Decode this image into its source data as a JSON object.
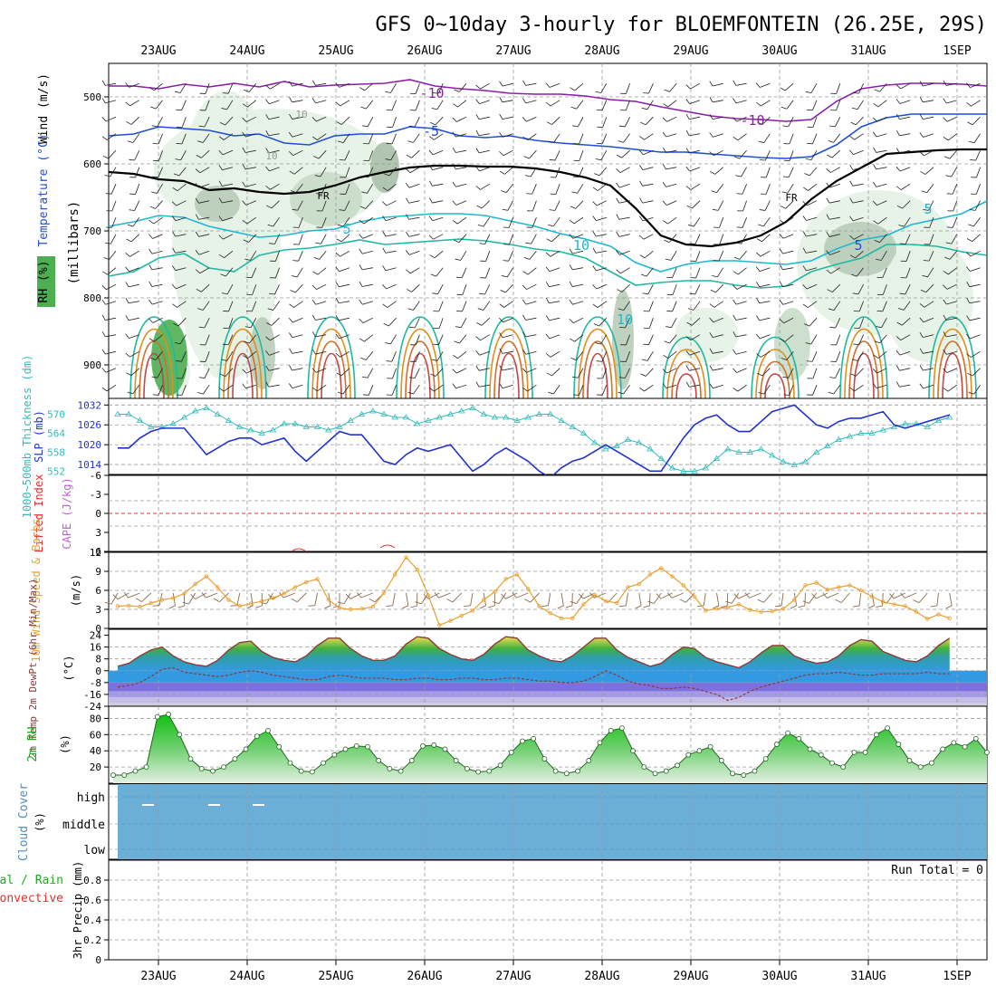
{
  "title": "GFS 0~10day 3-hourly for BLOEMFONTEIN (26.25E, 29S)",
  "dates": [
    "23AUG",
    "24AUG",
    "25AUG",
    "26AUG",
    "27AUG",
    "28AUG",
    "29AUG",
    "30AUG",
    "31AUG",
    "1SEP"
  ],
  "colors": {
    "rh_green": "#4caf50",
    "temp_purple": "#8b1fa8",
    "temp_blue": "#1f4fd8",
    "temp_cyan": "#1fb7d0",
    "temp_teal": "#1fb8a0",
    "temp_orange": "#e0901a",
    "slp": "#2233cc",
    "thickness": "#33bbbb",
    "wind10": "#e8a030",
    "rh2m": "#22aa22",
    "cloud": "#6baed6",
    "grid": "#999999"
  },
  "panels": {
    "upper": {
      "ylabel_rh": "RH (%)",
      "ylabel_temp": "Temperature (°C)",
      "ylabel_wind": "Wind (m/s)",
      "ylabel_mb": "(millibars)",
      "ticks": [
        "500",
        "600",
        "700",
        "800",
        "900"
      ],
      "contour_labels": [
        "-10",
        "-10",
        "-5",
        "10",
        "5",
        "10",
        "5",
        "5",
        "FR",
        "FR",
        "10",
        "10"
      ]
    },
    "slp": {
      "ylabel_left": "1000~500mb Thickness (dm)",
      "ylabel_right": "SLP (mb)",
      "thickness_ticks": [
        "570",
        "564",
        "558",
        "552"
      ],
      "slp_ticks": [
        "1032",
        "1026",
        "1020",
        "1014"
      ]
    },
    "cape": {
      "ylabel_left": "Lifted Index",
      "ylabel_right": "CAPE (J/kg)",
      "ticks": [
        "-6",
        "-3",
        "0",
        "3",
        "6"
      ]
    },
    "wind": {
      "ylabel": "10m Wind Speed & Barbs",
      "unit": "(m/s)",
      "ticks": [
        "12",
        "9",
        "6",
        "3",
        "0"
      ]
    },
    "temp": {
      "ylabel": "2m Temp 2m DewPt (6hr Min/Max)",
      "unit": "(°C)",
      "ticks": [
        "24",
        "16",
        "8",
        "0",
        "-8",
        "-16",
        "-24"
      ]
    },
    "rh": {
      "ylabel": "2m RH",
      "unit": "(%)",
      "ticks": [
        "80",
        "60",
        "40",
        "20"
      ]
    },
    "cloud": {
      "ylabel": "Cloud Cover",
      "unit": "(%)",
      "levels": [
        "high",
        "middle",
        "low"
      ]
    },
    "precip": {
      "ylabel_total": "Total / Rain",
      "ylabel_conv": "Convective",
      "ylabel_axis": "3hr Precip (mm)",
      "ticks": [
        "0.8",
        "0.6",
        "0.4",
        "0.2",
        "0"
      ],
      "run_total": "Run Total = 0"
    }
  },
  "chart_data": [
    {
      "type": "line",
      "title": "SLP (mb)",
      "x": [
        "22AUG18",
        "22AUG21",
        "23AUG00",
        "23AUG03",
        "23AUG06",
        "23AUG09",
        "23AUG12",
        "23AUG15",
        "23AUG18",
        "23AUG21",
        "24AUG00",
        "24AUG03",
        "24AUG06",
        "24AUG09",
        "24AUG12",
        "24AUG15",
        "24AUG18",
        "24AUG21",
        "25AUG00",
        "25AUG03",
        "25AUG06",
        "25AUG09",
        "25AUG12",
        "25AUG15",
        "25AUG18",
        "25AUG21",
        "26AUG00",
        "26AUG03",
        "26AUG06",
        "26AUG09",
        "26AUG12",
        "26AUG15",
        "26AUG18",
        "26AUG21",
        "27AUG00",
        "27AUG03",
        "27AUG06",
        "27AUG09",
        "27AUG12",
        "27AUG15",
        "27AUG18",
        "27AUG21",
        "28AUG00",
        "28AUG03",
        "28AUG06",
        "28AUG09",
        "28AUG12",
        "28AUG15",
        "28AUG18",
        "28AUG21",
        "29AUG00",
        "29AUG03",
        "29AUG06",
        "29AUG09",
        "29AUG12",
        "29AUG15",
        "29AUG18",
        "29AUG21",
        "30AUG00",
        "30AUG03",
        "30AUG06",
        "30AUG09",
        "30AUG12",
        "30AUG15",
        "30AUG18",
        "30AUG21",
        "31AUG00",
        "31AUG03",
        "31AUG06",
        "31AUG09",
        "31AUG12",
        "31AUG15",
        "31AUG18",
        "31AUG21",
        "1SEP00",
        "1SEP03"
      ],
      "series": [
        {
          "name": "SLP",
          "values": [
            1019,
            1019,
            1022,
            1024,
            1025,
            1025,
            1025,
            1021,
            1017,
            1019,
            1021,
            1022,
            1022,
            1020,
            1021,
            1022,
            1018,
            1015,
            1018,
            1021,
            1024,
            1023,
            1023,
            1019,
            1015,
            1014,
            1017,
            1019,
            1018,
            1019,
            1020,
            1016,
            1012,
            1014,
            1017,
            1019,
            1017,
            1015,
            1012,
            1010,
            1013,
            1015,
            1016,
            1018,
            1020,
            1018,
            1016,
            1014,
            1012,
            1012,
            1017,
            1022,
            1026,
            1028,
            1029,
            1026,
            1024,
            1024,
            1027,
            1030,
            1031,
            1032,
            1029,
            1026,
            1025,
            1027,
            1028,
            1028,
            1029,
            1030,
            1026,
            1025,
            1026,
            1027,
            1028,
            1029
          ]
        }
      ],
      "ylim": [
        1011,
        1034
      ]
    },
    {
      "type": "line",
      "title": "1000~500mb Thickness (dm)",
      "x_ref": "same as SLP",
      "series": [
        {
          "name": "Thickness",
          "values": [
            570,
            570,
            568,
            566,
            566,
            567,
            569,
            571,
            572,
            570,
            568,
            566,
            565,
            564,
            565,
            567,
            567,
            566,
            566,
            565,
            566,
            568,
            570,
            571,
            570,
            569,
            569,
            567,
            568,
            569,
            570,
            571,
            572,
            570,
            569,
            569,
            568,
            569,
            570,
            570,
            568,
            566,
            564,
            561,
            559,
            560,
            562,
            561,
            559,
            556,
            553,
            552,
            552,
            553,
            556,
            559,
            558,
            558,
            559,
            557,
            555,
            554,
            555,
            558,
            560,
            562,
            563,
            564,
            564,
            565,
            566,
            567,
            567,
            566,
            568,
            569
          ]
        }
      ],
      "ylim": [
        551,
        575
      ]
    },
    {
      "type": "line",
      "title": "10m Wind Speed",
      "ylabel": "(m/s)",
      "series": [
        {
          "name": "10m Wind",
          "values": [
            3.5,
            3.6,
            3.4,
            4,
            4.5,
            4.8,
            5.5,
            7.0,
            8.2,
            6.5,
            4.5,
            3.5,
            3.9,
            4.3,
            4.8,
            5.5,
            6.5,
            7.3,
            7.8,
            4.5,
            3.2,
            3.0,
            3.1,
            3.4,
            5.6,
            8.5,
            11.2,
            9.3,
            5.2,
            0.5,
            1.2,
            2.0,
            2.8,
            4.5,
            5.8,
            7.8,
            8.5,
            6.2,
            3.5,
            2.4,
            1.6,
            1.6,
            3.8,
            5.3,
            4.3,
            4.0,
            6.5,
            7.0,
            8.5,
            9.5,
            8.2,
            6.8,
            5.0,
            2.8,
            3.1,
            3.3,
            3.8,
            2.9,
            2.6,
            2.7,
            3.1,
            4.5,
            6.8,
            7.2,
            6.1,
            6.5,
            6.8,
            6.0,
            5.0,
            4.2,
            3.8,
            3.5,
            2.6,
            1.5,
            2.2,
            1.6
          ]
        }
      ],
      "ylim": [
        0,
        12
      ]
    },
    {
      "type": "area",
      "title": "2m Temp (°C)",
      "series": [
        {
          "name": "2m Temp",
          "values": [
            3,
            5,
            10,
            14,
            16,
            10,
            6,
            4,
            3,
            7,
            14,
            19,
            20,
            13,
            9,
            7,
            6,
            10,
            17,
            22,
            22,
            15,
            10,
            7,
            7,
            10,
            18,
            23,
            22,
            15,
            11,
            8,
            7,
            11,
            18,
            23,
            22,
            14,
            10,
            7,
            6,
            10,
            16,
            22,
            22,
            14,
            9,
            6,
            3,
            5,
            11,
            16,
            15,
            9,
            6,
            4,
            2,
            6,
            12,
            17,
            17,
            10,
            7,
            5,
            6,
            10,
            17,
            21,
            20,
            13,
            10,
            7,
            6,
            10,
            17,
            22
          ]
        },
        {
          "name": "2m DewPt",
          "values": [
            -11,
            -10,
            -8,
            -4,
            1,
            2,
            -1,
            -2,
            -3,
            -4,
            -3,
            -1,
            0,
            -1,
            -3,
            -4,
            -5,
            -6,
            -6,
            -4,
            -3,
            -4,
            -5,
            -5,
            -5,
            -6,
            -6,
            -5,
            -5,
            -6,
            -6,
            -5,
            -5,
            -6,
            -6,
            -5,
            -5,
            -6,
            -7,
            -7,
            -8,
            -8,
            -7,
            -4,
            0,
            -3,
            -7,
            -9,
            -10,
            -12,
            -12,
            -11,
            -12,
            -14,
            -16,
            -20,
            -18,
            -14,
            -11,
            -9,
            -7,
            -5,
            -3,
            -2,
            -2,
            -1,
            -2,
            -3,
            -3,
            -2,
            -2,
            -2,
            -2,
            -1,
            -2,
            -2
          ]
        }
      ],
      "ylim": [
        -24,
        28
      ]
    },
    {
      "type": "area",
      "title": "2m RH (%)",
      "series": [
        {
          "name": "2m RH",
          "values": [
            10,
            10,
            15,
            20,
            82,
            85,
            60,
            30,
            18,
            15,
            20,
            30,
            42,
            58,
            65,
            45,
            25,
            15,
            14,
            25,
            35,
            42,
            46,
            45,
            28,
            18,
            15,
            28,
            46,
            47,
            42,
            28,
            18,
            14,
            15,
            22,
            38,
            52,
            55,
            30,
            15,
            12,
            15,
            28,
            50,
            65,
            68,
            40,
            20,
            12,
            15,
            22,
            35,
            40,
            45,
            28,
            12,
            10,
            15,
            30,
            48,
            62,
            55,
            42,
            35,
            25,
            20,
            38,
            38,
            60,
            68,
            48,
            28,
            20,
            25,
            42,
            50,
            45,
            55,
            38
          ]
        }
      ],
      "ylim": [
        0,
        95
      ]
    },
    {
      "type": "table",
      "title": "Cloud Cover (%)",
      "categories": [
        "high",
        "middle",
        "low"
      ],
      "note": "panel filled uniformly; small high-cloud marks near 23AUG and 24AUG"
    },
    {
      "type": "bar",
      "title": "3hr Precip (mm)",
      "ylim": [
        0,
        1
      ],
      "series": [
        {
          "name": "Total / Rain",
          "values": []
        },
        {
          "name": "Convective",
          "values": []
        }
      ]
    }
  ]
}
